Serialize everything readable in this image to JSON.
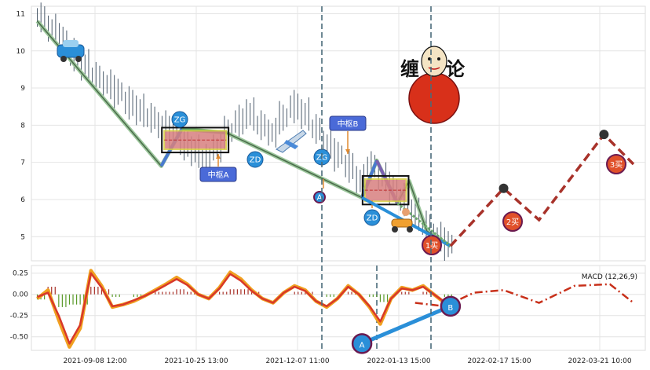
{
  "chart_data": [
    {
      "type": "line",
      "panel": "price",
      "ylim": [
        4.35,
        11.2
      ],
      "yticks": [
        "5",
        "6",
        "7",
        "8",
        "9",
        "10",
        "11"
      ],
      "xticks": [
        "2021-09-08 12:00",
        "2021-10-25 13:00",
        "2021-12-07 11:00",
        "2022-01-13 15:00",
        "2022-02-17 15:00",
        "2022-03-21 10:00"
      ],
      "price_series": [
        {
          "name": "price",
          "values": [
            10.9,
            10.6,
            10.3,
            9.9,
            9.6,
            9.3,
            9.1,
            8.9,
            8.6,
            8.4,
            8.2,
            8.0,
            7.8,
            7.5,
            7.3,
            7.1,
            7.4,
            7.8,
            8.1,
            8.3,
            8.0,
            7.8,
            8.2,
            8.5,
            8.3,
            7.9,
            7.5,
            7.2,
            6.9,
            6.5,
            6.9,
            6.6,
            6.3,
            6.0,
            5.6,
            5.3,
            5.0,
            4.8
          ]
        }
      ],
      "bi_points": [
        [
          1,
          10.8
        ],
        [
          22,
          6.9
        ],
        [
          25.5,
          7.9
        ],
        [
          33,
          7.8
        ],
        [
          56,
          6.05
        ],
        [
          58.5,
          7.05
        ],
        [
          62,
          5.9
        ],
        [
          64,
          6.5
        ],
        [
          67,
          5.15
        ],
        [
          71,
          4.75
        ]
      ],
      "zhongshu": [
        {
          "label": "中枢A",
          "zg_label": "ZG",
          "zd_label": "ZD",
          "zg": 7.85,
          "zd": 7.35
        },
        {
          "label": "中枢B",
          "zg_label": "ZG",
          "zd_label": "ZD",
          "zg": 6.55,
          "zd": 5.95
        }
      ],
      "forecast": [
        [
          71,
          4.75
        ],
        [
          80,
          6.3
        ],
        [
          86,
          5.45
        ],
        [
          97,
          7.75
        ],
        [
          102,
          6.95
        ]
      ],
      "trend_line_labels": [
        "A",
        "B"
      ],
      "buy_labels": [
        "1买",
        "2买",
        "3买"
      ],
      "title_text": "缠论"
    },
    {
      "type": "line",
      "panel": "macd",
      "legend": "MACD (12,26,9)",
      "ylim": [
        -0.66,
        0.34
      ],
      "yticks": [
        "0.25",
        "0.00",
        "-0.25",
        "-0.50"
      ],
      "dif": [
        -0.05,
        0.05,
        -0.3,
        -0.62,
        -0.4,
        0.28,
        0.1,
        -0.15,
        -0.12,
        -0.08,
        -0.02,
        0.05,
        0.12,
        0.2,
        0.12,
        0.0,
        -0.05,
        0.08,
        0.26,
        0.18,
        0.05,
        -0.05,
        -0.1,
        0.02,
        0.1,
        0.05,
        -0.08,
        -0.15,
        -0.05,
        0.1,
        0.0,
        -0.15,
        -0.35,
        -0.05,
        0.08,
        0.05,
        0.1,
        0.0,
        -0.1
      ],
      "dea": [
        -0.03,
        0.02,
        -0.25,
        -0.58,
        -0.36,
        0.25,
        0.08,
        -0.14,
        -0.12,
        -0.07,
        -0.02,
        0.04,
        0.11,
        0.18,
        0.11,
        0.0,
        -0.05,
        0.07,
        0.24,
        0.16,
        0.04,
        -0.05,
        -0.1,
        0.02,
        0.09,
        0.04,
        -0.08,
        -0.14,
        -0.05,
        0.09,
        0.0,
        -0.14,
        -0.32,
        -0.05,
        0.07,
        0.05,
        0.09,
        0.0,
        -0.09
      ],
      "macd_AB": [
        [
          56,
          -0.58
        ],
        [
          71,
          -0.14
        ]
      ],
      "forecast_dif": [
        [
          65,
          -0.1
        ],
        [
          70,
          -0.14
        ],
        [
          75,
          0.02
        ],
        [
          80,
          0.05
        ],
        [
          86,
          -0.1
        ],
        [
          92,
          0.1
        ],
        [
          98,
          0.12
        ],
        [
          102,
          -0.1
        ]
      ]
    }
  ],
  "colors": {
    "bi": "#4a6a4a",
    "zhongshu_fill": "#d88080",
    "trend_blue": "#2a8fd8",
    "forecast": "#a8322a",
    "dif": "#f0a020",
    "dea": "#d8382a"
  }
}
